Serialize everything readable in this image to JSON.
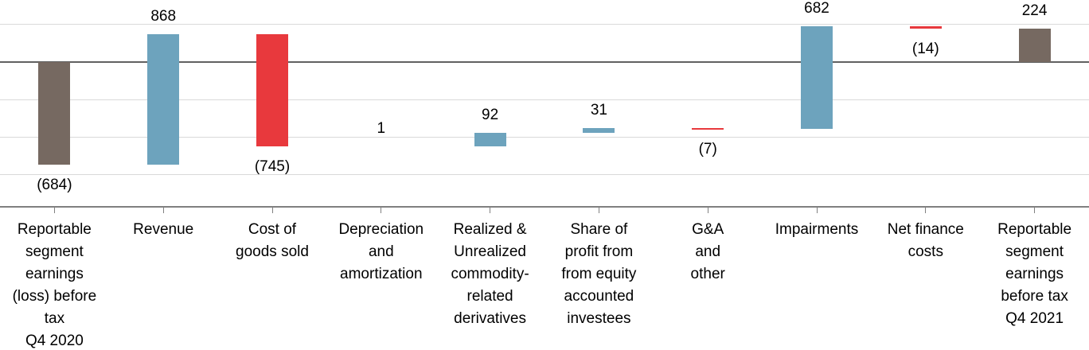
{
  "chart_data": {
    "type": "bar",
    "subtype": "waterfall",
    "title": "",
    "xlabel": "",
    "ylabel": "",
    "legend": "none",
    "grid": "horizontal",
    "axis": {
      "gridline_values": [
        250,
        -250,
        -500,
        -750
      ],
      "gridline_step": 250,
      "zero_line_value": 0,
      "y_implied_range": [
        410,
        -950
      ],
      "tick_position": "category-centers"
    },
    "colors": {
      "increase": "#6da3bd",
      "decrease": "#e8393d",
      "total": "#766961"
    },
    "categories": [
      "Reportable segment earnings (loss) before tax Q4 2020",
      "Revenue",
      "Cost of goods sold",
      "Depreciation and amortization",
      "Realized & Unrealized commodity-related derivatives",
      "Share of profit from from equity accounted investees",
      "G&A and other",
      "Impairments",
      "Net finance costs",
      "Reportable segment earnings before tax Q4 2021"
    ],
    "items": [
      {
        "name": "reportable-segment-earnings-q4-2020",
        "name_lines": [
          "Reportable",
          "segment",
          "earnings",
          "(loss) before",
          "tax",
          "Q4 2020"
        ],
        "value": -684,
        "display": "(684)",
        "start": 0,
        "end": -684,
        "role": "total",
        "label_position": "below"
      },
      {
        "name": "revenue",
        "name_lines": [
          "Revenue"
        ],
        "value": 868,
        "display": "868",
        "start": -684,
        "end": 184,
        "role": "increase",
        "label_position": "above"
      },
      {
        "name": "cost-of-goods-sold",
        "name_lines": [
          "Cost of",
          "goods sold"
        ],
        "value": -745,
        "display": "(745)",
        "start": 184,
        "end": -561,
        "role": "decrease",
        "label_position": "below"
      },
      {
        "name": "depreciation-and-amortization",
        "name_lines": [
          "Depreciation",
          "and",
          "amortization"
        ],
        "value": 1,
        "display": "1",
        "start": -561,
        "end": -560,
        "role": "increase",
        "label_position": "above"
      },
      {
        "name": "realized-unrealized-commodity-derivatives",
        "name_lines": [
          "Realized &",
          "Unrealized",
          "commodity-",
          "related",
          "derivatives"
        ],
        "value": 92,
        "display": "92",
        "start": -560,
        "end": -468,
        "role": "increase",
        "label_position": "above"
      },
      {
        "name": "share-of-profit-equity-investees",
        "name_lines": [
          "Share of",
          "profit from",
          "from equity",
          "accounted",
          "investees"
        ],
        "value": 31,
        "display": "31",
        "start": -468,
        "end": -437,
        "role": "increase",
        "label_position": "above"
      },
      {
        "name": "ga-and-other",
        "name_lines": [
          "G&A",
          "and",
          "other"
        ],
        "value": -7,
        "display": "(7)",
        "start": -437,
        "end": -444,
        "role": "decrease",
        "label_position": "below"
      },
      {
        "name": "impairments",
        "name_lines": [
          "Impairments"
        ],
        "value": 682,
        "display": "682",
        "start": -444,
        "end": 238,
        "role": "increase",
        "label_position": "above"
      },
      {
        "name": "net-finance-costs",
        "name_lines": [
          "Net finance",
          "costs"
        ],
        "value": -14,
        "display": "(14)",
        "start": 238,
        "end": 224,
        "role": "decrease",
        "label_position": "below"
      },
      {
        "name": "reportable-segment-earnings-q4-2021",
        "name_lines": [
          "Reportable",
          "segment",
          "earnings",
          "before tax",
          "Q4 2021"
        ],
        "value": 224,
        "display": "224",
        "start": 0,
        "end": 224,
        "role": "total",
        "label_position": "above"
      }
    ]
  }
}
